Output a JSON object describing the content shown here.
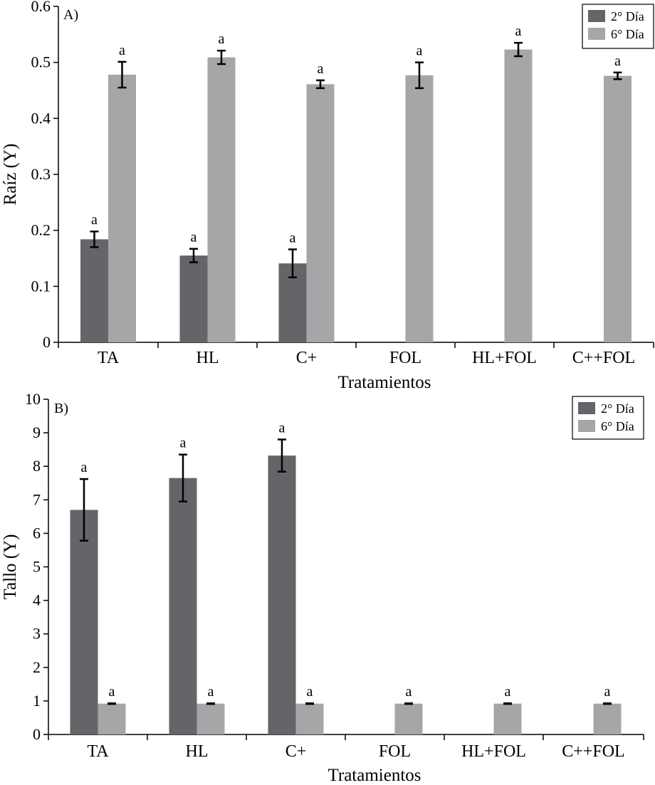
{
  "colors": {
    "day2": "#646569",
    "day6": "#a5a6a8",
    "axis": "#000000",
    "background": "#ffffff"
  },
  "chart_data": [
    {
      "type": "bar",
      "panel_label": "A)",
      "title": "",
      "xlabel": "Tratamientos",
      "ylabel": "Raíz (Y)",
      "categories": [
        "TA",
        "HL",
        "C+",
        "FOL",
        "HL+FOL",
        "C++FOL"
      ],
      "ylim": [
        0,
        0.6
      ],
      "yticks": [
        0,
        0.1,
        0.2,
        0.3,
        0.4,
        0.5,
        0.6
      ],
      "ytick_labels": [
        "0",
        "0.1",
        "0.2",
        "0.3",
        "0.4",
        "0.5",
        "0.6"
      ],
      "grid": false,
      "legend_position": "top-right",
      "series": [
        {
          "name": "2° Día",
          "color_key": "day2",
          "values": [
            0.184,
            0.155,
            0.141,
            null,
            null,
            null
          ],
          "errors": [
            0.014,
            0.012,
            0.025,
            null,
            null,
            null
          ],
          "labels": [
            "a",
            "a",
            "a",
            null,
            null,
            null
          ]
        },
        {
          "name": "6° Día",
          "color_key": "day6",
          "values": [
            0.478,
            0.509,
            0.461,
            0.477,
            0.523,
            0.476
          ],
          "errors": [
            0.023,
            0.012,
            0.007,
            0.023,
            0.012,
            0.006
          ],
          "labels": [
            "a",
            "a",
            "a",
            "a",
            "a",
            "a"
          ]
        }
      ]
    },
    {
      "type": "bar",
      "panel_label": "B)",
      "title": "",
      "xlabel": "Tratamientos",
      "ylabel": "Tallo (Y)",
      "categories": [
        "TA",
        "HL",
        "C+",
        "FOL",
        "HL+FOL",
        "C++FOL"
      ],
      "ylim": [
        0,
        10
      ],
      "yticks": [
        0,
        1,
        2,
        3,
        4,
        5,
        6,
        7,
        8,
        9,
        10
      ],
      "ytick_labels": [
        "0",
        "1",
        "2",
        "3",
        "4",
        "5",
        "6",
        "7",
        "8",
        "9",
        "10"
      ],
      "grid": false,
      "legend_position": "top-right",
      "series": [
        {
          "name": "2° Día",
          "color_key": "day2",
          "values": [
            6.7,
            7.65,
            8.32,
            null,
            null,
            null
          ],
          "errors": [
            0.92,
            0.7,
            0.48,
            null,
            null,
            null
          ],
          "labels": [
            "a",
            "a",
            "a",
            null,
            null,
            null
          ]
        },
        {
          "name": "6° Día",
          "color_key": "day6",
          "values": [
            0.92,
            0.92,
            0.92,
            0.92,
            0.92,
            0.92
          ],
          "errors": [
            0.01,
            0.01,
            0.01,
            0.01,
            0.01,
            0.01
          ],
          "labels": [
            "a",
            "a",
            "a",
            "a",
            "a",
            "a"
          ]
        }
      ]
    }
  ]
}
